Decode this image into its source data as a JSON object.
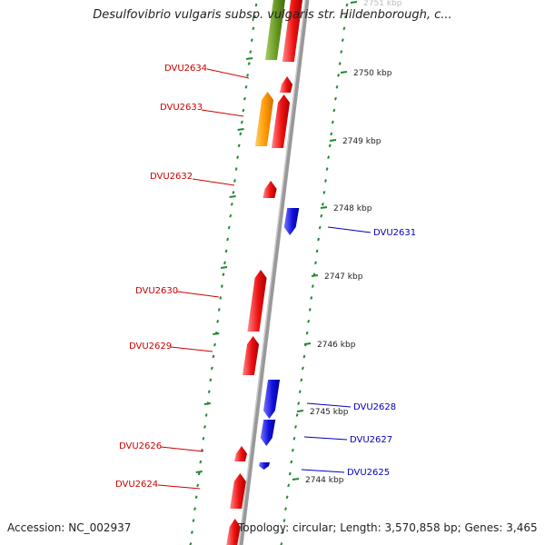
{
  "title": "Desulfovibrio vulgaris subsp. vulgaris str. Hildenborough, c...",
  "footer": {
    "accession": "Accession: NC_002937",
    "topology": "Topology: circular; Length: 3,570,858 bp; Genes: 3,465"
  },
  "colors": {
    "forward_gene": "#ee1111",
    "reverse_gene": "#1111dd",
    "gene_orange": "#ff9900",
    "gene_olive": "#669922",
    "axis": "#888888",
    "tick": "#228833",
    "forward_label": "#cc0000",
    "reverse_label": "#0000bb"
  },
  "ruler": {
    "unit": "kbp",
    "ticks": [
      {
        "label": "2751 kbp"
      },
      {
        "label": "2750 kbp"
      },
      {
        "label": "2749 kbp"
      },
      {
        "label": "2748 kbp"
      },
      {
        "label": "2747 kbp"
      },
      {
        "label": "2746 kbp"
      },
      {
        "label": "2745 kbp"
      },
      {
        "label": "2744 kbp"
      }
    ]
  },
  "genes": {
    "forward": [
      {
        "id": "DVU2634",
        "labeled": true
      },
      {
        "id": "DVU2633",
        "labeled": true
      },
      {
        "id": "DVU2632",
        "labeled": true
      },
      {
        "id": "DVU2630",
        "labeled": true
      },
      {
        "id": "DVU2629",
        "labeled": true
      },
      {
        "id": "DVU2626",
        "labeled": true
      },
      {
        "id": "DVU2624",
        "labeled": true
      }
    ],
    "reverse": [
      {
        "id": "DVU2631",
        "labeled": true
      },
      {
        "id": "DVU2628",
        "labeled": true
      },
      {
        "id": "DVU2627",
        "labeled": true
      },
      {
        "id": "DVU2625",
        "labeled": true
      }
    ]
  }
}
